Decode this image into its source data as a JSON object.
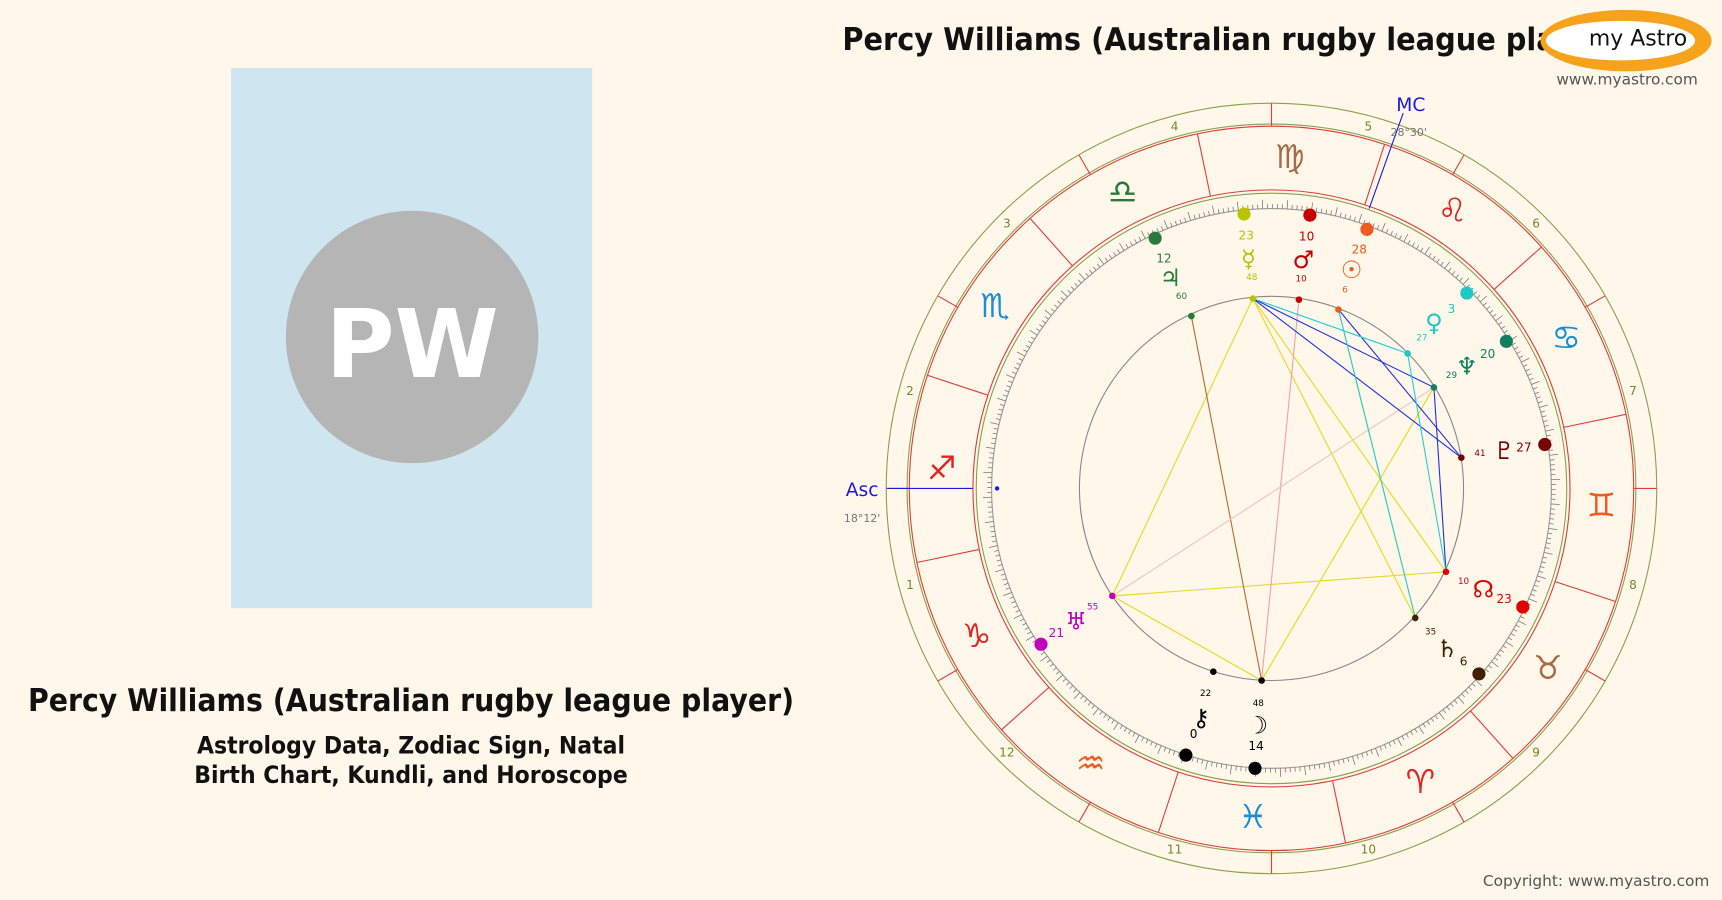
{
  "header": {
    "title": "Percy Williams (Australian rugby league pla",
    "logo": "my Astro",
    "site": "www.myastro.com"
  },
  "profile": {
    "initials": "PW",
    "name": "Percy Williams (Australian rugby league player)",
    "subtitle_lines": [
      "Astrology Data, Zodiac Sign, Natal",
      "Birth Chart, Kundli, and Horoscope"
    ]
  },
  "chart": {
    "asc": {
      "label": "Asc",
      "value": "18°12'"
    },
    "mc": {
      "label": "MC",
      "value": "28°30'"
    },
    "houses": [
      1,
      2,
      3,
      4,
      5,
      6,
      7,
      8,
      9,
      10,
      11,
      12
    ],
    "signs": [
      "♈︎",
      "♉︎",
      "♊︎",
      "♋︎",
      "♌︎",
      "♍︎",
      "♎︎",
      "♏︎",
      "♐︎",
      "♑︎",
      "♒︎",
      "♓︎"
    ],
    "planets": [
      {
        "glyph": "☿",
        "degree": 23,
        "minute": 48
      },
      {
        "glyph": "♂",
        "degree": 10,
        "minute": 10
      },
      {
        "glyph": "☉",
        "degree": 28,
        "minute": 6
      },
      {
        "glyph": "♃",
        "degree": 12,
        "minute": 60
      },
      {
        "glyph": "♀",
        "degree": 3,
        "minute": 27
      },
      {
        "glyph": "♆",
        "degree": 20,
        "minute": 29
      },
      {
        "glyph": "♇",
        "degree": 27,
        "minute": 41
      },
      {
        "glyph": "☊",
        "degree": 23,
        "minute": 10
      },
      {
        "glyph": "♄",
        "degree": 6,
        "minute": 35
      },
      {
        "glyph": "☽",
        "degree": 14,
        "minute": 48
      },
      {
        "glyph": "⚷",
        "degree": 0,
        "minute": 22
      },
      {
        "glyph": "♅",
        "degree": 21,
        "minute": 55
      }
    ]
  },
  "footer": {
    "copyright": "Copyright: www.myastro.com"
  }
}
